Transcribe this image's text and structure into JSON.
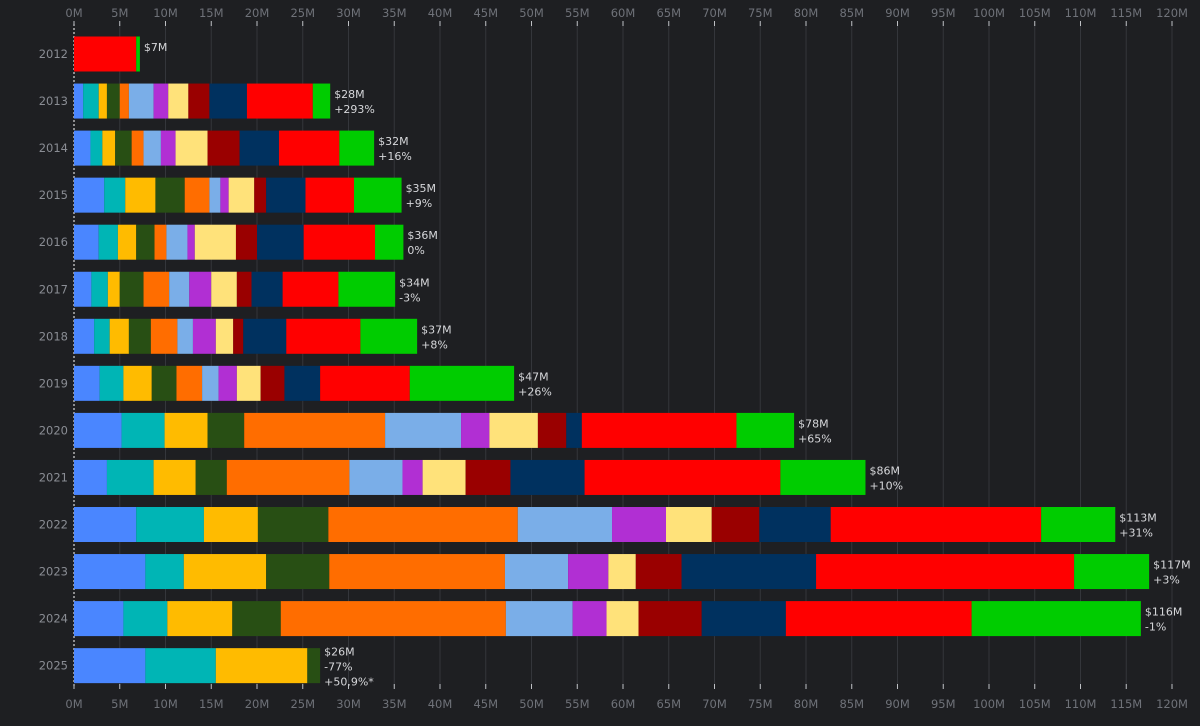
{
  "chart_data": {
    "type": "bar",
    "orientation": "horizontal",
    "stacked": true,
    "xlim": [
      0,
      120
    ],
    "x_ticks": [
      "0M",
      "5M",
      "10M",
      "15M",
      "20M",
      "25M",
      "30M",
      "35M",
      "40M",
      "45M",
      "50M",
      "55M",
      "60M",
      "65M",
      "70M",
      "75M",
      "80M",
      "85M",
      "90M",
      "95M",
      "100M",
      "105M",
      "110M",
      "115M",
      "120M"
    ],
    "grid": true,
    "segment_colors": [
      "#4a86ff",
      "#00b5b5",
      "#ffbb00",
      "#284f14",
      "#ff6d00",
      "#7aaee8",
      "#b12fd3",
      "#ffe27a",
      "#9a0000",
      "#00315f",
      "#ff0000",
      "#00cc00"
    ],
    "categories": [
      "2012",
      "2013",
      "2014",
      "2015",
      "2016",
      "2017",
      "2018",
      "2019",
      "2020",
      "2021",
      "2022",
      "2023",
      "2024",
      "2025"
    ],
    "rows": [
      {
        "year": "2012",
        "segments": [
          0,
          0,
          0,
          0,
          0,
          0,
          0,
          0,
          0,
          0,
          6.8,
          0.4
        ],
        "total_label": "$7M",
        "change_label": "",
        "extra_label": ""
      },
      {
        "year": "2013",
        "segments": [
          1.0,
          1.7,
          0.9,
          1.4,
          1.0,
          2.7,
          1.6,
          2.2,
          2.3,
          4.1,
          7.2,
          1.9
        ],
        "total_label": "$28M",
        "change_label": "+293%",
        "extra_label": ""
      },
      {
        "year": "2014",
        "segments": [
          1.8,
          1.3,
          1.4,
          1.8,
          1.3,
          1.9,
          1.6,
          3.5,
          3.5,
          4.3,
          6.6,
          3.8
        ],
        "total_label": "$32M",
        "change_label": "+16%",
        "extra_label": ""
      },
      {
        "year": "2015",
        "segments": [
          3.3,
          2.3,
          3.3,
          3.2,
          2.7,
          1.2,
          0.9,
          2.8,
          1.3,
          4.3,
          5.3,
          5.2
        ],
        "total_label": "$35M",
        "change_label": "+9%",
        "extra_label": ""
      },
      {
        "year": "2016",
        "segments": [
          2.7,
          2.1,
          2.0,
          2.0,
          1.3,
          2.3,
          0.8,
          4.5,
          2.3,
          5.1,
          7.8,
          3.1
        ],
        "total_label": "$36M",
        "change_label": "0%",
        "extra_label": ""
      },
      {
        "year": "2017",
        "segments": [
          1.9,
          1.8,
          1.3,
          2.6,
          2.8,
          2.2,
          2.4,
          2.8,
          1.6,
          3.4,
          6.1,
          6.2
        ],
        "total_label": "$34M",
        "change_label": "-3%",
        "extra_label": ""
      },
      {
        "year": "2018",
        "segments": [
          2.2,
          1.7,
          2.1,
          2.4,
          2.9,
          1.7,
          2.5,
          1.9,
          1.1,
          4.7,
          8.1,
          6.2
        ],
        "total_label": "$37M",
        "change_label": "+8%",
        "extra_label": ""
      },
      {
        "year": "2019",
        "segments": [
          2.8,
          2.6,
          3.1,
          2.7,
          2.8,
          1.8,
          2.0,
          2.6,
          2.6,
          3.9,
          9.8,
          11.4
        ],
        "total_label": "$47M",
        "change_label": "+26%",
        "extra_label": ""
      },
      {
        "year": "2020",
        "segments": [
          5.2,
          4.7,
          4.7,
          4.0,
          15.4,
          8.3,
          3.1,
          5.3,
          3.1,
          1.7,
          16.9,
          6.3
        ],
        "total_label": "$78M",
        "change_label": "+65%",
        "extra_label": ""
      },
      {
        "year": "2021",
        "segments": [
          3.6,
          5.1,
          4.6,
          3.4,
          13.4,
          5.8,
          2.2,
          4.7,
          4.9,
          8.1,
          21.4,
          9.3
        ],
        "total_label": "$86M",
        "change_label": "+10%",
        "extra_label": ""
      },
      {
        "year": "2022",
        "segments": [
          6.8,
          7.4,
          5.9,
          7.7,
          20.7,
          10.3,
          5.9,
          5.0,
          5.2,
          7.8,
          23.0,
          8.1
        ],
        "total_label": "$113M",
        "change_label": "+31%",
        "extra_label": ""
      },
      {
        "year": "2023",
        "segments": [
          7.8,
          4.2,
          9.0,
          6.9,
          19.2,
          6.9,
          4.4,
          3.0,
          5.0,
          14.7,
          28.2,
          8.2
        ],
        "total_label": "$117M",
        "change_label": "+3%",
        "extra_label": ""
      },
      {
        "year": "2024",
        "segments": [
          5.4,
          4.8,
          7.1,
          5.3,
          24.6,
          7.3,
          3.7,
          3.5,
          6.9,
          9.2,
          20.3,
          18.5
        ],
        "total_label": "$116M",
        "change_label": "-1%",
        "extra_label": ""
      },
      {
        "year": "2025",
        "segments": [
          7.8,
          7.7,
          10.0,
          1.4,
          0,
          0,
          0,
          0,
          0,
          0,
          0,
          0
        ],
        "total_label": "$26M",
        "change_label": "-77%",
        "extra_label": "+50.9%*"
      }
    ]
  }
}
